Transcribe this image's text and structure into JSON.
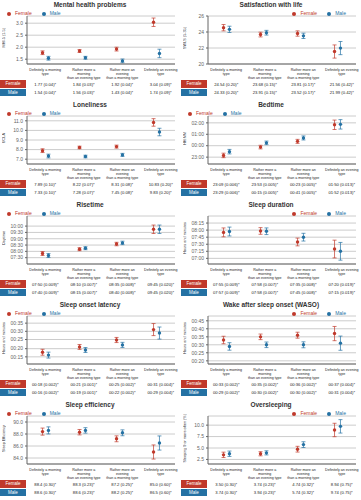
{
  "chart_data": [
    {
      "type": "scatter",
      "title": "Mental health problems",
      "ylabel": "MHI-5 (1-5)",
      "categories": [
        "Definitely a morning\ntype",
        "Rather more a morning\nthan an evening type",
        "Rather more an evening\nthan a morning type",
        "Definitely an evening\ntype"
      ],
      "series": [
        {
          "name": "Female",
          "color": "#c0392b",
          "values": [
            1.77,
            1.84,
            1.92,
            3.04
          ],
          "error": [
            0.078,
            0.059,
            0.078,
            0.176
          ],
          "value_labels": [
            "1.77 (0.04)*",
            "1.84 (0.03)*",
            "1.92 (0.04)*",
            "3.04 (0.09)*"
          ]
        },
        {
          "name": "Male",
          "color": "#2471a3",
          "values": [
            1.54,
            1.56,
            1.43,
            1.74
          ],
          "error": [
            0.078,
            0.059,
            0.078,
            0.176
          ],
          "value_labels": [
            "1.54 (0.04)*",
            "1.56 (0.03)*",
            "1.43 (0.04)*",
            "1.74 (0.09)*"
          ]
        }
      ],
      "ylim": [
        1.3,
        3.3
      ],
      "yticks": [
        1.5,
        {
          "value": 2.0,
          "label": "2.0"
        },
        2.5,
        {
          "value": 3.0,
          "label": "3.0"
        }
      ],
      "grid": true,
      "legend": "upper left",
      "tick_labels": "y"
    },
    {
      "type": "scatter",
      "title": "Satisfaction with life",
      "ylabel": "SWLS (5-35)",
      "categories": [
        "Definitely a morning\ntype",
        "Rather more a morning\nthan an evening type",
        "Rather more an evening\nthan a morning type",
        "Definitely an evening\ntype"
      ],
      "series": [
        {
          "name": "Female",
          "color": "#c0392b",
          "values": [
            24.54,
            23.68,
            23.81,
            21.56
          ],
          "error": [
            0.392,
            0.294,
            0.333,
            0.823
          ],
          "value_labels": [
            "24.54 (0.20)*",
            "23.68 (0.15)*",
            "23.81 (0.17)*",
            "21.56 (0.42)*"
          ]
        },
        {
          "name": "Male",
          "color": "#2471a3",
          "values": [
            24.33,
            23.91,
            23.52,
            21.99
          ],
          "error": [
            0.392,
            0.294,
            0.333,
            0.823
          ],
          "value_labels": [
            "24.33 (0.20)*",
            "23.91 (0.15)*",
            "23.52 (0.17)*",
            "21.99 (0.42)*"
          ]
        }
      ],
      "ylim": [
        20,
        26
      ],
      "yticks": [
        20,
        22,
        24,
        26
      ],
      "grid": true,
      "legend": "upper right",
      "tick_labels": "y"
    },
    {
      "type": "scatter",
      "title": "Loneliness",
      "ylabel": "UCLA",
      "categories": [
        "Definitely a morning\ntype",
        "Rather more a morning\nthan an evening type",
        "Rather more an evening\nthan a morning type",
        "Definitely an evening\ntype"
      ],
      "series": [
        {
          "name": "Female",
          "color": "#c0392b",
          "values": [
            7.89,
            8.22,
            8.31,
            10.83
          ],
          "error": [
            0.196,
            0.137,
            0.157,
            0.392
          ],
          "value_labels": [
            "7.89 (0.10)*",
            "8.22 (0.07)*",
            "8.31 (0.08)*",
            "10.83 (0.20)*"
          ]
        },
        {
          "name": "Male",
          "color": "#2471a3",
          "values": [
            7.33,
            7.28,
            7.45,
            9.83
          ],
          "error": [
            0.196,
            0.137,
            0.157,
            0.392
          ],
          "value_labels": [
            "7.33 (0.10)*",
            "7.28 (0.07)*",
            "7.45 (0.08)*",
            "9.83 (0.20)*"
          ]
        }
      ],
      "ylim": [
        6.5,
        11.5
      ],
      "yticks": [
        {
          "value": 7.0,
          "label": "7.0"
        },
        {
          "value": 8.0,
          "label": "8.0"
        },
        {
          "value": 9.0,
          "label": "9.0"
        },
        {
          "value": 10.0,
          "label": "10.0"
        },
        {
          "value": 11.0,
          "label": "11.0"
        }
      ],
      "grid": true,
      "legend": "upper left",
      "tick_labels": "y"
    },
    {
      "type": "scatter",
      "title": "Bedtime",
      "ylabel": "HH:MM",
      "categories": [
        "Definitely a morning\ntype",
        "Rather more a morning\nthan an evening type",
        "Rather more an evening\nthan a morning type",
        "Definitely an evening\ntype"
      ],
      "series": [
        {
          "name": "Female",
          "color": "#c0392b",
          "values": [
            23.15,
            23.88,
            24.38,
            25.83
          ],
          "error": [
            0.196,
            0.157,
            0.176,
            0.412
          ],
          "value_labels": [
            "23:09 (0.006)*",
            "23:53 (0.005)*",
            "00:23 (0.005)*",
            "01:50 (0.013)*"
          ]
        },
        {
          "name": "Male",
          "color": "#2471a3",
          "values": [
            23.48,
            24.25,
            24.68,
            25.87
          ],
          "error": [
            0.196,
            0.157,
            0.176,
            0.412
          ],
          "value_labels": [
            "23:29 (0.006)*",
            "00:15 (0.005)*",
            "00:41 (0.005)*",
            "01:52 (0.013)*"
          ]
        }
      ],
      "ylim": [
        22.4,
        26.6
      ],
      "yticks": [
        {
          "value": 23.0,
          "label": "23:00"
        },
        {
          "value": 24.0,
          "label": "00:00"
        },
        {
          "value": 25.0,
          "label": "01:00"
        },
        {
          "value": 26.0,
          "label": "02:00"
        }
      ],
      "grid": true,
      "legend": "upper left",
      "tick_labels": "y"
    },
    {
      "type": "scatter",
      "title": "Risetime",
      "ylabel": "Daytime",
      "categories": [
        "Definitely a morning\ntype",
        "Rather more a morning\nthan an evening type",
        "Rather more an evening\nthan a morning type",
        "Definitely an evening\ntype"
      ],
      "series": [
        {
          "name": "Female",
          "color": "#c0392b",
          "values": [
            7.83,
            8.17,
            8.58,
            9.75
          ],
          "error": [
            0.157,
            0.118,
            0.137,
            0.333
          ],
          "value_labels": [
            "07:50 (0.009)*",
            "08:10 (0.007)*",
            "08:35 (0.008)*",
            "09:45 (0.020)*"
          ]
        },
        {
          "name": "Male",
          "color": "#2471a3",
          "values": [
            7.67,
            8.25,
            8.67,
            9.75
          ],
          "error": [
            0.157,
            0.118,
            0.137,
            0.333
          ],
          "value_labels": [
            "07:40 (0.009)*",
            "08:15 (0.007)*",
            "08:40 (0.008)*",
            "09:45 (0.020)*"
          ]
        }
      ],
      "ylim": [
        7.0,
        10.8
      ],
      "yticks": [
        {
          "value": 7.5,
          "label": "07:30"
        },
        {
          "value": 8.0,
          "label": "08:00"
        },
        {
          "value": 8.5,
          "label": "08:30"
        },
        {
          "value": 9.0,
          "label": "09:00"
        },
        {
          "value": 9.5,
          "label": "09:30"
        },
        {
          "value": 10.0,
          "label": "10:00"
        }
      ],
      "grid": true,
      "legend": "upper left",
      "tick_labels": "y"
    },
    {
      "type": "scatter",
      "title": "Sleep duration",
      "ylabel": "Hours and minutes",
      "categories": [
        "Definitely a morning\ntype",
        "Rather more a morning\nthan an evening type",
        "Rather more an evening\nthan a morning type",
        "Definitely an evening\ntype"
      ],
      "series": [
        {
          "name": "Female",
          "color": "#c0392b",
          "values": [
            7.92,
            7.97,
            7.58,
            7.33
          ],
          "error": [
            0.157,
            0.118,
            0.137,
            0.314
          ],
          "value_labels": [
            "07:55 (0.009)*",
            "07:58 (0.007)*",
            "07:35 (0.008)*",
            "07:20 (0.019)*"
          ]
        },
        {
          "name": "Male",
          "color": "#2471a3",
          "values": [
            7.95,
            7.96,
            7.75,
            7.25
          ],
          "error": [
            0.157,
            0.118,
            0.137,
            0.314
          ],
          "value_labels": [
            "07:57 (0.009)*",
            "07:58 (0.007)*",
            "07:45 (0.008)*",
            "07:15 (0.019)*"
          ]
        }
      ],
      "ylim": [
        6.8,
        8.5
      ],
      "yticks": [
        {
          "value": 7.0,
          "label": "07:00"
        },
        {
          "value": 7.25,
          "label": "07:15"
        },
        {
          "value": 7.5,
          "label": "07:30"
        },
        {
          "value": 7.75,
          "label": "07:45"
        },
        {
          "value": 8.0,
          "label": "08:00"
        },
        {
          "value": 8.25,
          "label": "08:15"
        }
      ],
      "grid": true,
      "legend": "upper right",
      "tick_labels": "y"
    },
    {
      "type": "scatter",
      "title": "Sleep onset latency",
      "ylabel": "Hours and minutes",
      "categories": [
        "Definitely a morning\ntype",
        "Rather more a morning\nthan an evening type",
        "Rather more an evening\nthan a morning type",
        "Definitely an evening\ntype"
      ],
      "series": [
        {
          "name": "Female",
          "color": "#c0392b",
          "values": [
            0.295,
            0.347,
            0.415,
            0.517
          ],
          "error": [
            0.029,
            0.024,
            0.025,
            0.059
          ],
          "value_labels": [
            "00:18 (0.002)*",
            "00:21 (0.001)*",
            "00:25 (0.002)*",
            "00:31 (0.004)*"
          ]
        },
        {
          "name": "Male",
          "color": "#2471a3",
          "values": [
            0.267,
            0.317,
            0.367,
            0.483
          ],
          "error": [
            0.029,
            0.024,
            0.025,
            0.059
          ],
          "value_labels": [
            "00:16 (0.002)*",
            "00:19 (0.001)*",
            "00:22 (0.002)*",
            "00:29 (0.004)*"
          ]
        }
      ],
      "ylim": [
        0.18,
        0.65
      ],
      "yticks": [
        {
          "value": 0.25,
          "label": "00:15"
        },
        {
          "value": 0.33,
          "label": "00:20"
        },
        {
          "value": 0.42,
          "label": "00:25"
        },
        {
          "value": 0.5,
          "label": "00:30"
        },
        {
          "value": 0.58,
          "label": "00:35"
        }
      ],
      "grid": true,
      "legend": "upper left",
      "tick_labels": "y"
    },
    {
      "type": "scatter",
      "title": "Wake after sleep onset (WASO)",
      "ylabel": "Hours and minutes",
      "categories": [
        "Definitely a morning\ntype",
        "Rather more a morning\nthan an evening type",
        "Rather more an evening\nthan a morning type",
        "Definitely an evening\ntype"
      ],
      "series": [
        {
          "name": "Female",
          "color": "#c0392b",
          "values": [
            0.55,
            0.583,
            0.6,
            0.617
          ],
          "error": [
            0.039,
            0.029,
            0.031,
            0.074
          ],
          "value_labels": [
            "00:33 (0.002)*",
            "00:35 (0.002)*",
            "00:36 (0.002)*",
            "00:37 (0.004)*"
          ]
        },
        {
          "name": "Male",
          "color": "#2471a3",
          "values": [
            0.483,
            0.5,
            0.5,
            0.517
          ],
          "error": [
            0.039,
            0.029,
            0.031,
            0.074
          ],
          "value_labels": [
            "00:29 (0.002)*",
            "00:30 (0.002)*",
            "00:30 (0.002)*",
            "00:31 (0.004)*"
          ]
        }
      ],
      "ylim": [
        0.3,
        0.8
      ],
      "yticks": [
        {
          "value": 0.333,
          "label": "00:20"
        },
        {
          "value": 0.417,
          "label": "00:25"
        },
        {
          "value": 0.5,
          "label": "00:30"
        },
        {
          "value": 0.583,
          "label": "00:35"
        },
        {
          "value": 0.667,
          "label": "00:40"
        },
        {
          "value": 0.75,
          "label": "00:45"
        }
      ],
      "grid": true,
      "legend": "upper right",
      "tick_labels": "y"
    },
    {
      "type": "scatter",
      "title": "Sleep efficiency",
      "ylabel": "Sleep Efficiency",
      "categories": [
        "Definitely a morning\ntype",
        "Rather more a morning\nthan an evening type",
        "Rather more an evening\nthan a morning type",
        "Definitely an evening\ntype"
      ],
      "series": [
        {
          "name": "Female",
          "color": "#c0392b",
          "values": [
            88.4,
            88.3,
            87.2,
            85.0
          ],
          "error": [
            0.588,
            0.451,
            0.49,
            1.176
          ],
          "value_labels": [
            "88.4 (0.30)*",
            "88.3 (0.23)*",
            "87.2 (0.25)*",
            "85.0 (0.60)*"
          ]
        },
        {
          "name": "Male",
          "color": "#2471a3",
          "values": [
            88.6,
            88.6,
            88.2,
            86.5
          ],
          "error": [
            0.588,
            0.451,
            0.49,
            1.176
          ],
          "value_labels": [
            "88.6 (0.30)*",
            "88.6 (0.23)*",
            "88.2 (0.25)*",
            "86.5 (0.60)*"
          ]
        }
      ],
      "ylim": [
        83.0,
        91.0
      ],
      "yticks": [
        {
          "value": 84.0,
          "label": "84.0"
        },
        {
          "value": 86.0,
          "label": "86.0"
        },
        {
          "value": 88.0,
          "label": "88.0"
        },
        {
          "value": 90.0,
          "label": "90.0"
        }
      ],
      "grid": true,
      "legend": "upper left",
      "tick_labels": "y"
    },
    {
      "type": "scatter",
      "title": "Oversleeping",
      "ylabel": "Sleeping 9 or more often (%)",
      "categories": [
        "Definitely a morning\ntype",
        "Rather more a morning\nthan an evening type",
        "Rather more an evening\nthan a morning type",
        "Definitely an evening\ntype"
      ],
      "series": [
        {
          "name": "Female",
          "color": "#c0392b",
          "values": [
            3.5,
            3.74,
            4.74,
            8.94
          ],
          "error": [
            0.588,
            0.451,
            0.627,
            1.47
          ],
          "value_labels": [
            "3.50 (0.30)*",
            "3.74 (0.23)*",
            "4.74 (0.32)*",
            "8.94 (0.75)*"
          ]
        },
        {
          "name": "Male",
          "color": "#2471a3",
          "values": [
            3.74,
            3.94,
            5.74,
            9.74
          ],
          "error": [
            0.588,
            0.451,
            0.627,
            1.47
          ],
          "value_labels": [
            "3.74 (0.30)*",
            "3.94 (0.23)*",
            "5.74 (0.32)*",
            "9.74 (0.75)*"
          ]
        }
      ],
      "ylim": [
        1.5,
        12.0
      ],
      "yticks": [
        2.5,
        {
          "value": 5.0,
          "label": "5.0"
        },
        7.5,
        {
          "value": 10.0,
          "label": "10.0"
        }
      ],
      "grid": true,
      "legend": "upper right",
      "tick_labels": "y"
    }
  ]
}
